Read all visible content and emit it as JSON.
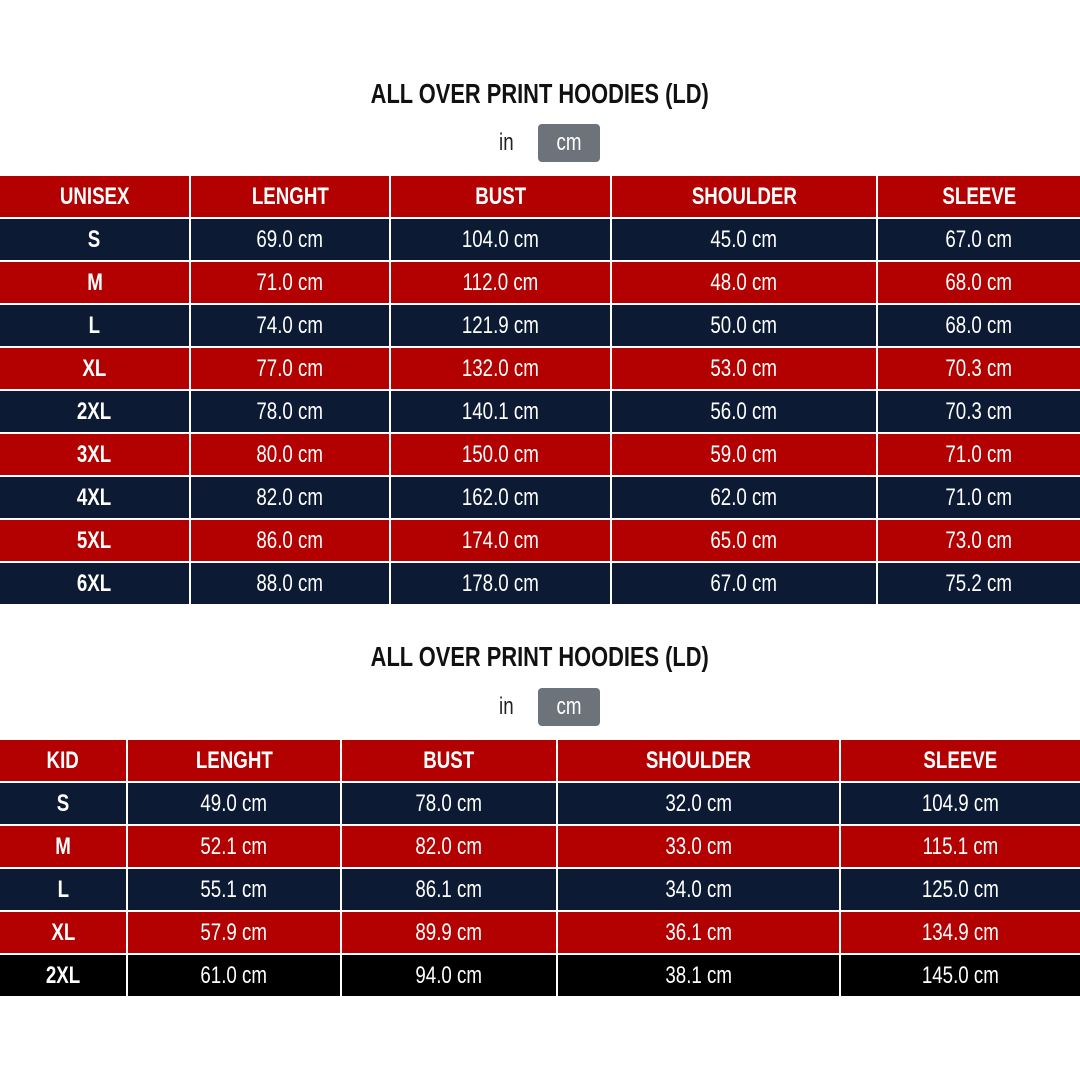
{
  "colors": {
    "red": "#b30000",
    "navy": "#0c1a33",
    "black": "#000000",
    "toggle_active": "#6c737b"
  },
  "tables": [
    {
      "title": "ALL OVER PRINT HOODIES (LD)",
      "unit_toggle": {
        "in": "in",
        "cm": "cm",
        "selected": "cm"
      },
      "headers": [
        "UNISEX",
        "LENGHT",
        "BUST",
        "SHOULDER",
        "SLEEVE"
      ],
      "rows": [
        [
          "S",
          "69.0 cm",
          "104.0 cm",
          "45.0 cm",
          "67.0 cm"
        ],
        [
          "M",
          "71.0 cm",
          "112.0 cm",
          "48.0 cm",
          "68.0 cm"
        ],
        [
          "L",
          "74.0 cm",
          "121.9 cm",
          "50.0 cm",
          "68.0 cm"
        ],
        [
          "XL",
          "77.0 cm",
          "132.0 cm",
          "53.0 cm",
          "70.3 cm"
        ],
        [
          "2XL",
          "78.0 cm",
          "140.1 cm",
          "56.0 cm",
          "70.3 cm"
        ],
        [
          "3XL",
          "80.0 cm",
          "150.0 cm",
          "59.0 cm",
          "71.0 cm"
        ],
        [
          "4XL",
          "82.0 cm",
          "162.0 cm",
          "62.0 cm",
          "71.0 cm"
        ],
        [
          "5XL",
          "86.0 cm",
          "174.0 cm",
          "65.0 cm",
          "73.0 cm"
        ],
        [
          "6XL",
          "88.0 cm",
          "178.0 cm",
          "67.0 cm",
          "75.2 cm"
        ]
      ]
    },
    {
      "title": "ALL OVER PRINT HOODIES (LD)",
      "unit_toggle": {
        "in": "in",
        "cm": "cm",
        "selected": "cm"
      },
      "headers": [
        "KID",
        "LENGHT",
        "BUST",
        "SHOULDER",
        "SLEEVE"
      ],
      "rows": [
        [
          "S",
          "49.0 cm",
          "78.0 cm",
          "32.0 cm",
          "104.9 cm"
        ],
        [
          "M",
          "52.1 cm",
          "82.0 cm",
          "33.0 cm",
          "115.1 cm"
        ],
        [
          "L",
          "55.1 cm",
          "86.1 cm",
          "34.0 cm",
          "125.0 cm"
        ],
        [
          "XL",
          "57.9 cm",
          "89.9 cm",
          "36.1 cm",
          "134.9 cm"
        ],
        [
          "2XL",
          "61.0 cm",
          "94.0 cm",
          "38.1 cm",
          "145.0 cm"
        ]
      ]
    }
  ]
}
